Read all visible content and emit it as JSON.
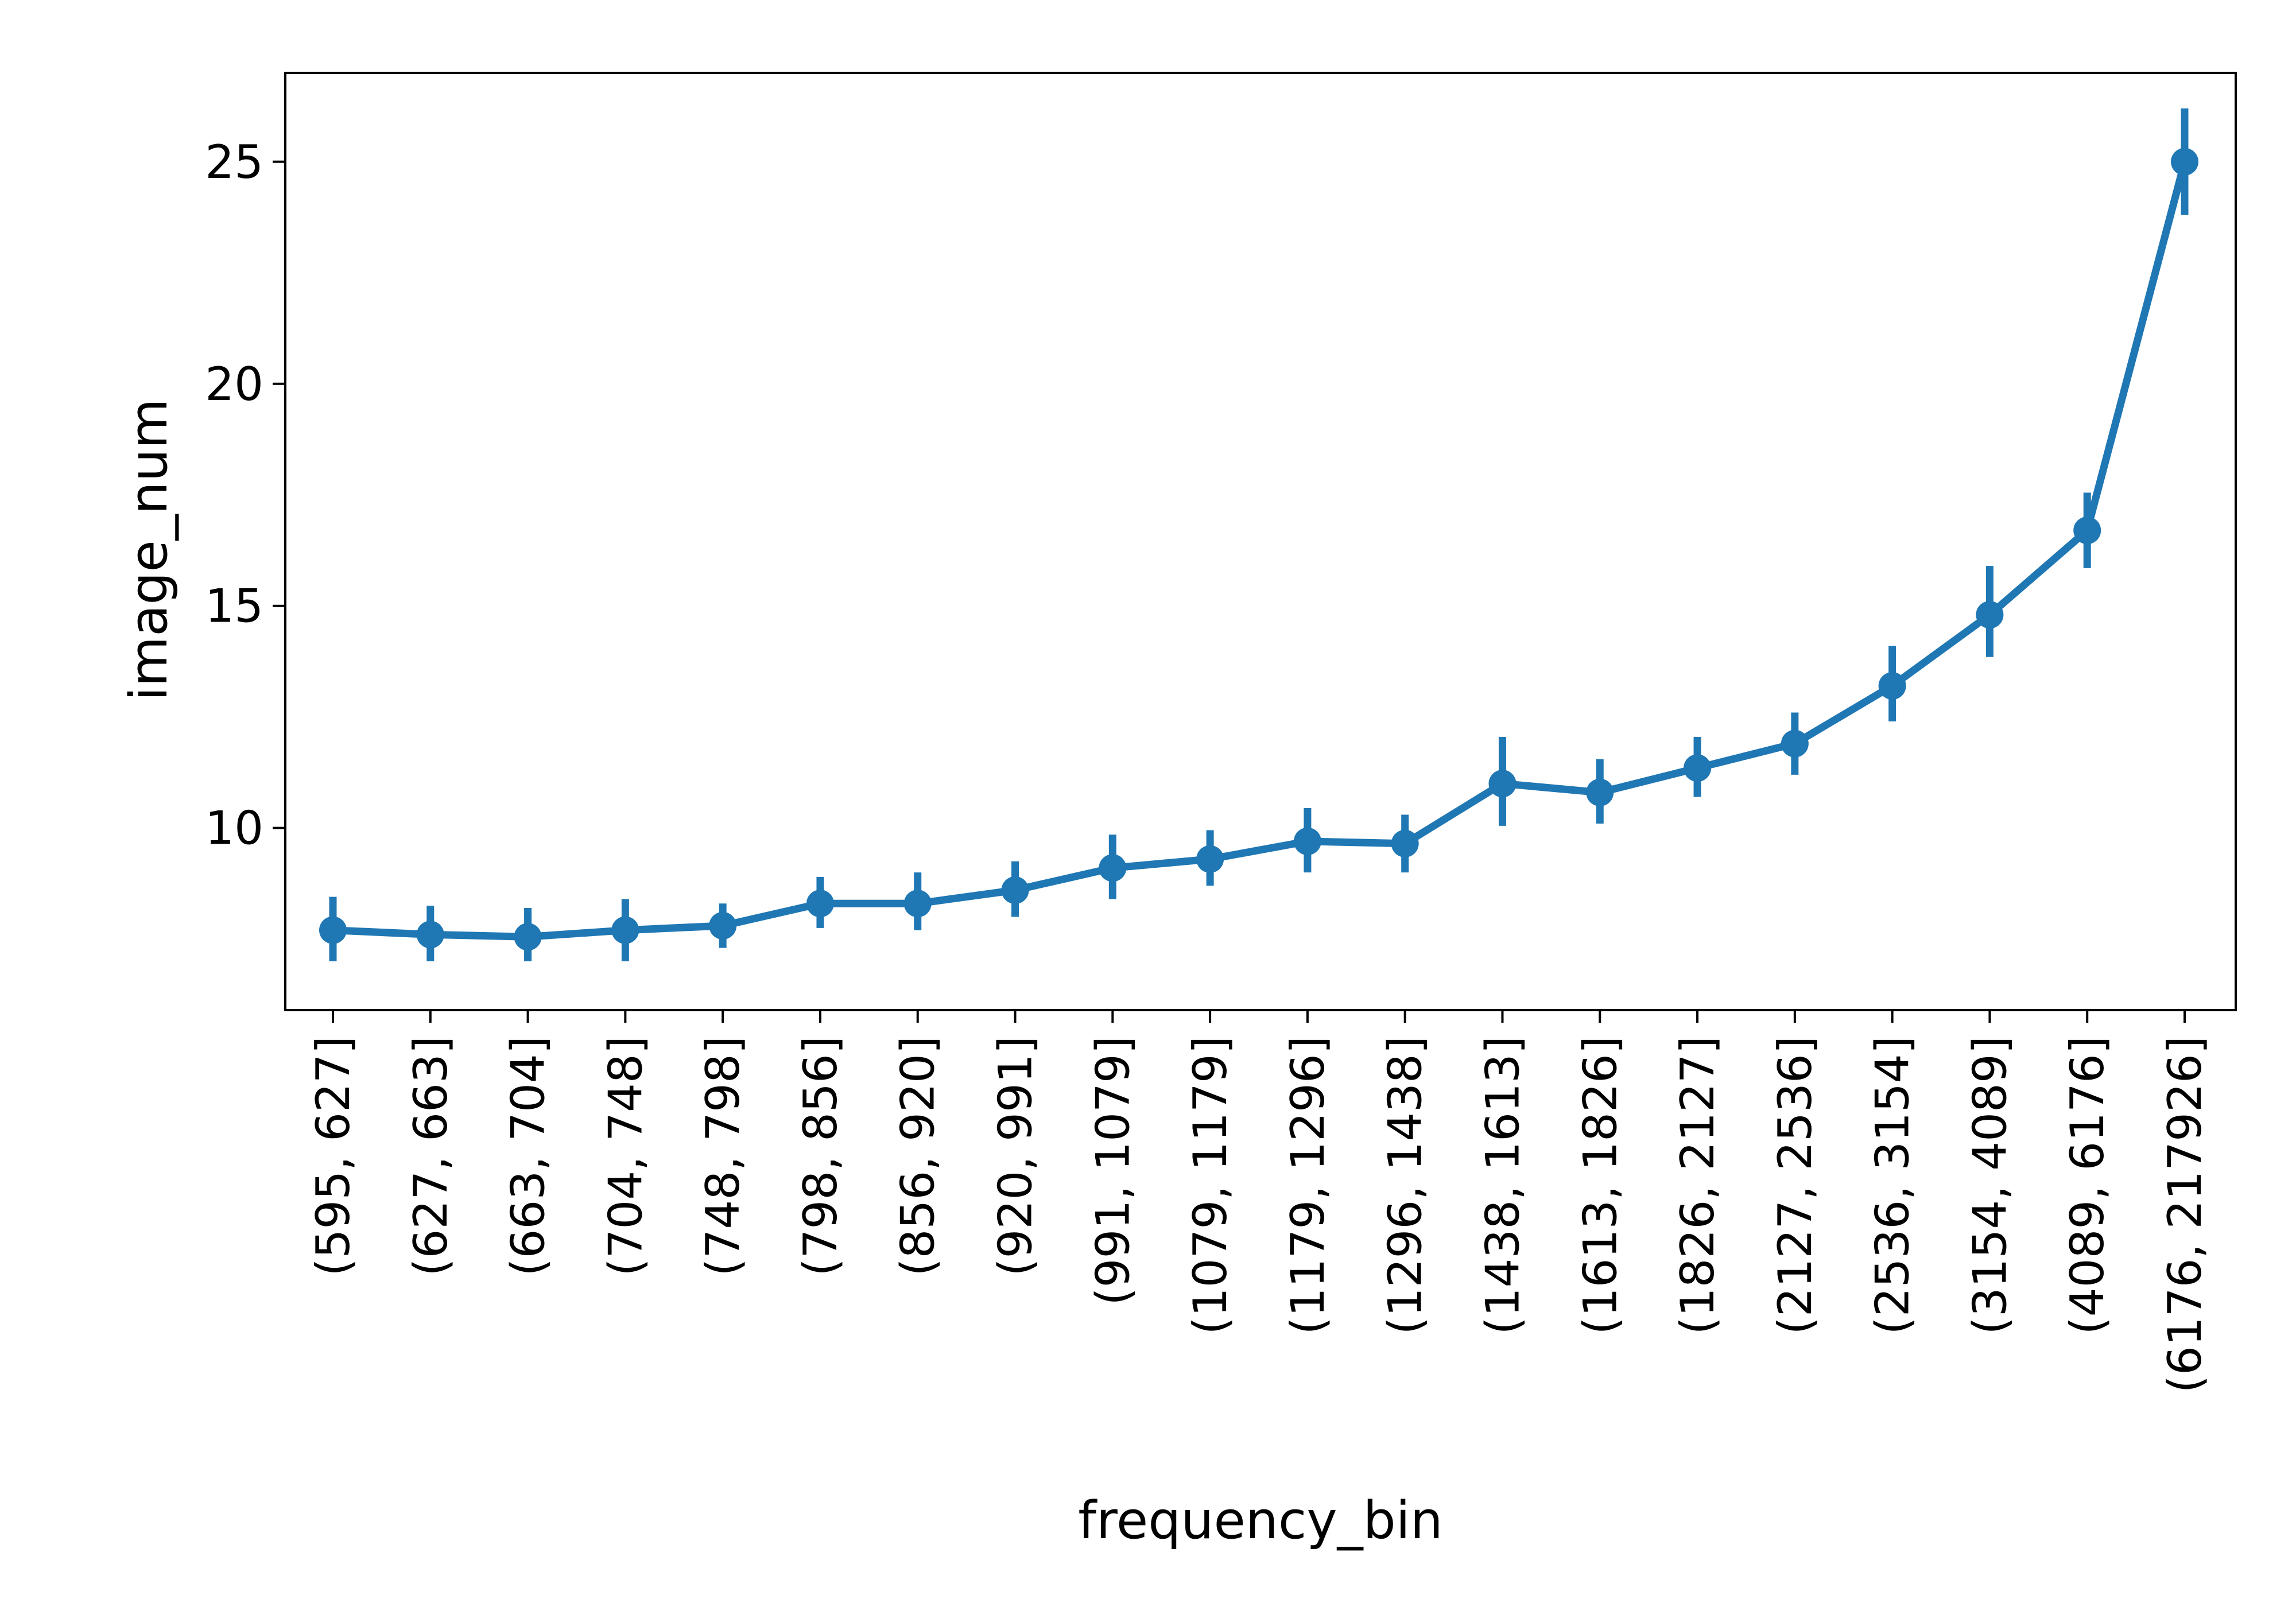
{
  "chart_data": {
    "type": "line",
    "xlabel": "frequency_bin",
    "ylabel": "image_num",
    "categories": [
      "(595, 627]",
      "(627, 663]",
      "(663, 704]",
      "(704, 748]",
      "(748, 798]",
      "(798, 856]",
      "(856, 920]",
      "(920, 991]",
      "(991, 1079]",
      "(1079, 1179]",
      "(1179, 1296]",
      "(1296, 1438]",
      "(1438, 1613]",
      "(1613, 1826]",
      "(1826, 2127]",
      "(2127, 2536]",
      "(2536, 3154]",
      "(3154, 4089]",
      "(4089, 6176]",
      "(6176, 217926]"
    ],
    "series": [
      {
        "values": [
          7.7,
          7.6,
          7.55,
          7.7,
          7.8,
          8.3,
          8.3,
          8.6,
          9.1,
          9.3,
          9.7,
          9.65,
          11.0,
          10.8,
          11.35,
          11.9,
          13.2,
          14.8,
          16.7,
          25.0
        ],
        "err_low": [
          7.0,
          7.0,
          7.0,
          7.0,
          7.3,
          7.75,
          7.7,
          8.0,
          8.4,
          8.7,
          9.0,
          9.0,
          10.05,
          10.1,
          10.7,
          11.2,
          12.4,
          13.85,
          15.85,
          23.8
        ],
        "err_high": [
          8.45,
          8.25,
          8.2,
          8.4,
          8.3,
          8.9,
          9.0,
          9.25,
          9.85,
          9.95,
          10.45,
          10.3,
          12.05,
          11.55,
          12.05,
          12.6,
          14.1,
          15.9,
          17.55,
          26.2
        ],
        "color": "#1f77b4"
      }
    ],
    "y_ticks": [
      10,
      15,
      20,
      25
    ],
    "ylim": [
      5.9,
      27.0
    ],
    "grid": false,
    "legend": "none"
  }
}
